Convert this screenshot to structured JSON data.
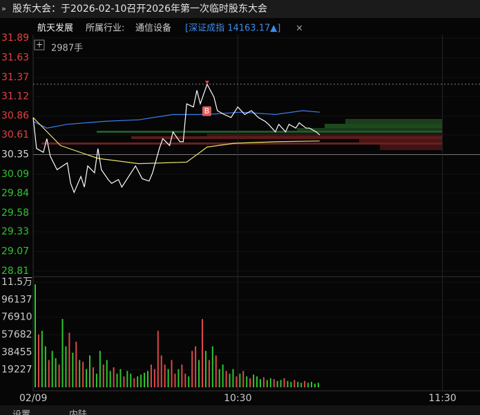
{
  "notice": "股东大会：于2026-02-10召开2026年第一次临时股东大会",
  "header": {
    "stock": "航天发展",
    "industry_label": "所属行业:",
    "industry": "通信设备",
    "index": "[深证成指 14163.17▲]",
    "close": "×"
  },
  "volume_label": "2987手",
  "buy_marker": "B",
  "tabs": [
    "设置",
    "内陆"
  ],
  "chart_data": {
    "type": "intraday",
    "ylim": [
      28.81,
      31.89
    ],
    "yticks": [
      31.89,
      31.63,
      31.37,
      31.12,
      30.86,
      30.61,
      30.35,
      30.09,
      29.84,
      29.58,
      29.33,
      29.07,
      28.81
    ],
    "prev_close": 30.35,
    "xlim": [
      0,
      131
    ],
    "xticks": [
      {
        "value": 0,
        "label": "02/09"
      },
      {
        "value": 60,
        "label": "10:30"
      },
      {
        "value": 120,
        "label": "11:30"
      }
    ],
    "series": [
      {
        "name": "price",
        "color": "#ffffff",
        "x": [
          0,
          1,
          3,
          4,
          5,
          7,
          10,
          11,
          12,
          14,
          15,
          16,
          18,
          19,
          20,
          22,
          23,
          25,
          26,
          28,
          30,
          32,
          34,
          35,
          37,
          38,
          40,
          41,
          43,
          44,
          45,
          47,
          48,
          49,
          51,
          53,
          54,
          56,
          58,
          60,
          62,
          64,
          66,
          68,
          69,
          71,
          72,
          74,
          75,
          77,
          78,
          80,
          81,
          83,
          84
        ],
        "values": [
          30.84,
          30.43,
          30.38,
          30.56,
          30.33,
          30.15,
          30.24,
          29.97,
          29.85,
          30.06,
          29.92,
          30.2,
          30.11,
          30.43,
          30.15,
          30.02,
          29.97,
          30.02,
          29.92,
          30.06,
          30.2,
          30.03,
          30.0,
          30.11,
          30.43,
          30.56,
          30.47,
          30.65,
          30.52,
          30.52,
          31.02,
          30.98,
          31.2,
          31.02,
          31.28,
          31.11,
          30.93,
          30.88,
          30.84,
          30.98,
          30.88,
          30.93,
          30.84,
          30.79,
          30.75,
          30.65,
          30.75,
          30.65,
          30.75,
          30.7,
          30.77,
          30.7,
          30.7,
          30.65,
          30.61
        ]
      },
      {
        "name": "average",
        "color": "#e8e06a",
        "x": [
          0,
          8,
          19,
          31,
          45,
          51,
          59,
          71,
          84
        ],
        "values": [
          30.84,
          30.47,
          30.3,
          30.23,
          30.25,
          30.45,
          30.5,
          30.52,
          30.53
        ]
      },
      {
        "name": "index",
        "color": "#3a7ff0",
        "x": [
          0,
          4,
          10,
          21,
          31,
          41,
          51,
          61,
          71,
          79,
          84
        ],
        "values": [
          30.79,
          30.7,
          30.75,
          30.79,
          30.81,
          30.88,
          30.88,
          30.91,
          30.88,
          30.93,
          30.91
        ]
      }
    ],
    "volume": {
      "ylim": [
        0,
        115362
      ],
      "yticks": [
        19227,
        38455,
        57682,
        76910,
        96137,
        {
          "value": 115362,
          "label": "11.5万"
        }
      ],
      "values": [
        113000,
        58000,
        62000,
        45000,
        30000,
        40000,
        32000,
        25000,
        75000,
        45000,
        60000,
        38000,
        50000,
        30000,
        28000,
        20000,
        35000,
        22000,
        15000,
        40000,
        25000,
        30000,
        18000,
        22000,
        15000,
        20000,
        12000,
        18000,
        15000,
        10000,
        12000,
        14000,
        16000,
        18000,
        25000,
        20000,
        62000,
        35000,
        25000,
        20000,
        30000,
        15000,
        20000,
        25000,
        15000,
        12000,
        40000,
        45000,
        30000,
        75000,
        40000,
        30000,
        45000,
        35000,
        20000,
        25000,
        18000,
        15000,
        20000,
        12000,
        15000,
        18000,
        12000,
        10000,
        14000,
        12000,
        9000,
        11000,
        8000,
        10000,
        9000,
        7000,
        8000,
        10000,
        7000,
        6000,
        8000,
        6000,
        5000,
        7000,
        5000,
        6000,
        4000,
        5000
      ],
      "colors": [
        "#2fc62f",
        "#e04848",
        "#2fc62f",
        "#2fc62f",
        "#e04848",
        "#2fc62f",
        "#2fc62f",
        "#e04848",
        "#2fc62f",
        "#2fc62f",
        "#e04848",
        "#2fc62f",
        "#e04848",
        "#2fc62f",
        "#e04848",
        "#2fc62f",
        "#2fc62f",
        "#e04848",
        "#2fc62f",
        "#2fc62f",
        "#e04848",
        "#2fc62f",
        "#2fc62f",
        "#e04848",
        "#2fc62f",
        "#2fc62f",
        "#e04848",
        "#2fc62f",
        "#2fc62f",
        "#e04848",
        "#2fc62f",
        "#2fc62f",
        "#2fc62f",
        "#2fc62f",
        "#e04848",
        "#e04848",
        "#e04848",
        "#e04848",
        "#e04848",
        "#2fc62f",
        "#e04848",
        "#e04848",
        "#2fc62f",
        "#e04848",
        "#e04848",
        "#2fc62f",
        "#e04848",
        "#e04848",
        "#2fc62f",
        "#e04848",
        "#2fc62f",
        "#e04848",
        "#2fc62f",
        "#e04848",
        "#2fc62f",
        "#2fc62f",
        "#e04848",
        "#2fc62f",
        "#2fc62f",
        "#e04848",
        "#2fc62f",
        "#e04848",
        "#2fc62f",
        "#e04848",
        "#2fc62f",
        "#2fc62f",
        "#2fc62f",
        "#e04848",
        "#2fc62f",
        "#2fc62f",
        "#e04848",
        "#2fc62f",
        "#2fc62f",
        "#e04848",
        "#2fc62f",
        "#2fc62f",
        "#e04848",
        "#2fc62f",
        "#2fc62f",
        "#e04848",
        "#2fc62f",
        "#2fc62f",
        "#2fc62f",
        "#2fc62f"
      ]
    }
  }
}
